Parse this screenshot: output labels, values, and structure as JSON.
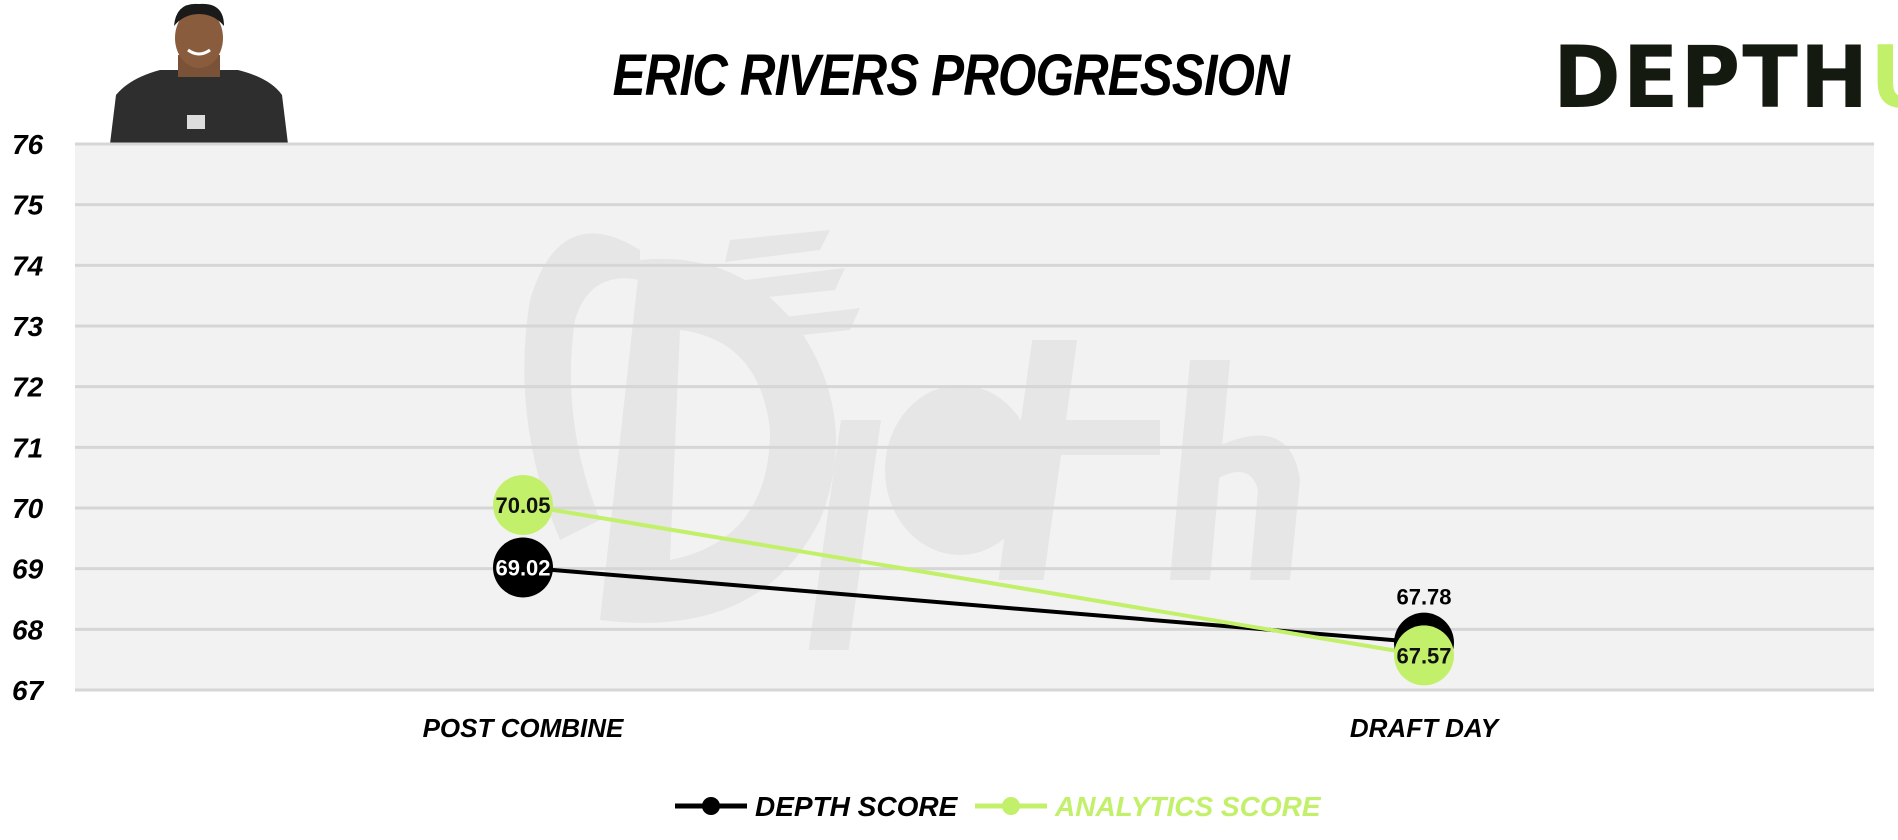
{
  "title": "ERIC RIVERS PROGRESSION",
  "logo": {
    "text_main": "DEPTH",
    "text_accent": "U"
  },
  "watermark": "Depth",
  "colors": {
    "depth": "#000000",
    "analytics": "#c3f06a",
    "plot_bg": "#f2f2f2",
    "grid": "#d6d6d6"
  },
  "chart_data": {
    "type": "line",
    "title": "ERIC RIVERS PROGRESSION",
    "categories": [
      "POST COMBINE",
      "DRAFT DAY"
    ],
    "series": [
      {
        "name": "DEPTH SCORE",
        "values": [
          69.02,
          67.78
        ],
        "labels": [
          "69.02",
          "67.78"
        ],
        "color": "#000000"
      },
      {
        "name": "ANALYTICS SCORE",
        "values": [
          70.05,
          67.57
        ],
        "labels": [
          "70.05",
          "67.57"
        ],
        "color": "#c3f06a"
      }
    ],
    "yticks": [
      "67",
      "68",
      "69",
      "70",
      "71",
      "72",
      "73",
      "74",
      "75",
      "76"
    ],
    "ylim": [
      67,
      76
    ],
    "grid": true,
    "legend": "bottom"
  }
}
